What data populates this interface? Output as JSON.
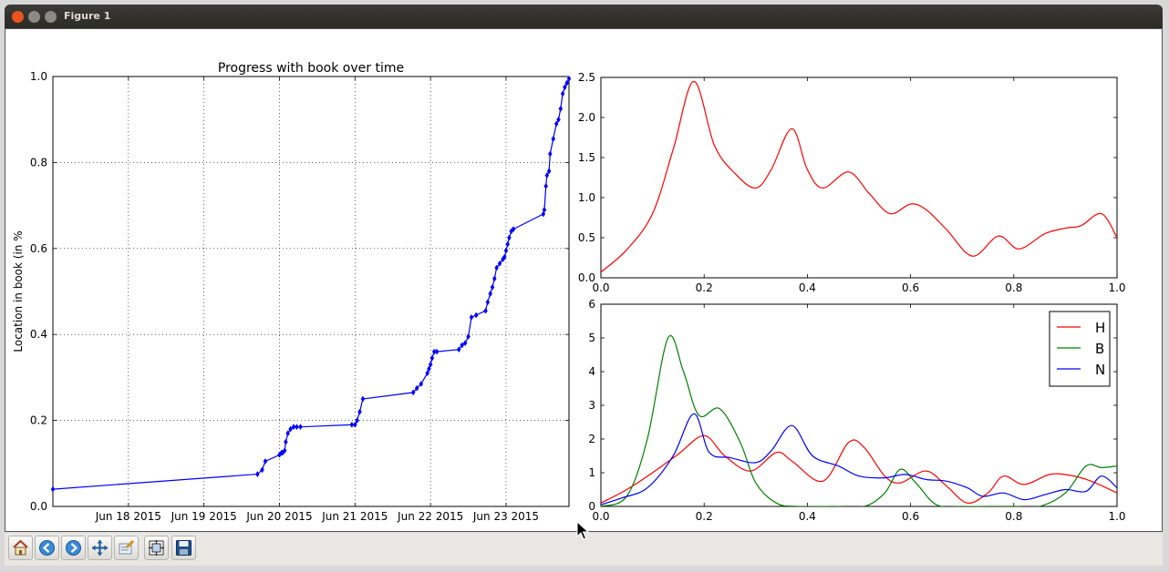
{
  "window": {
    "title": "Figure 1"
  },
  "toolbar": {
    "buttons": [
      {
        "name": "home-icon"
      },
      {
        "name": "back-icon"
      },
      {
        "name": "forward-icon"
      },
      {
        "name": "pan-icon"
      },
      {
        "name": "zoom-icon"
      },
      {
        "name": "subplots-icon"
      },
      {
        "name": "save-icon"
      }
    ]
  },
  "chart_data": [
    {
      "type": "line",
      "title": "Progress with book over time",
      "xlabel": "",
      "ylabel": "Location in book (in %",
      "xlim": [
        "2015-06-17",
        "2015-06-23 20:00"
      ],
      "ylim": [
        0.0,
        1.0
      ],
      "x_tick_labels": [
        "Jun 18 2015",
        "Jun 19 2015",
        "Jun 20 2015",
        "Jun 21 2015",
        "Jun 22 2015",
        "Jun 23 2015"
      ],
      "x_tick_dates": [
        "2015-06-18",
        "2015-06-19",
        "2015-06-20",
        "2015-06-21",
        "2015-06-22",
        "2015-06-23"
      ],
      "y_tick_labels": [
        "0.0",
        "0.2",
        "0.4",
        "0.6",
        "0.8",
        "1.0"
      ],
      "grid": true,
      "color": "#0000ff",
      "marker": "diamond",
      "x": [
        "2015-06-17 00:00",
        "2015-06-19 17:00",
        "2015-06-19 18:30",
        "2015-06-19 19:30",
        "2015-06-20 00:00",
        "2015-06-20 00:40",
        "2015-06-20 01:00",
        "2015-06-20 01:40",
        "2015-06-20 02:00",
        "2015-06-20 02:40",
        "2015-06-20 03:30",
        "2015-06-20 04:30",
        "2015-06-20 05:30",
        "2015-06-20 06:40",
        "2015-06-20 23:00",
        "2015-06-21 00:00",
        "2015-06-21 00:40",
        "2015-06-21 01:30",
        "2015-06-21 02:30",
        "2015-06-21 18:30",
        "2015-06-21 19:40",
        "2015-06-21 21:00",
        "2015-06-21 23:00",
        "2015-06-21 23:30",
        "2015-06-22 00:00",
        "2015-06-22 00:30",
        "2015-06-22 01:10",
        "2015-06-22 02:00",
        "2015-06-22 09:00",
        "2015-06-22 10:00",
        "2015-06-22 11:00",
        "2015-06-22 12:00",
        "2015-06-22 13:00",
        "2015-06-22 14:30",
        "2015-06-22 17:30",
        "2015-06-22 18:10",
        "2015-06-22 19:00",
        "2015-06-22 19:40",
        "2015-06-22 20:20",
        "2015-06-22 21:00",
        "2015-06-22 22:00",
        "2015-06-22 23:00",
        "2015-06-22 23:30",
        "2015-06-23 00:00",
        "2015-06-23 00:30",
        "2015-06-23 01:00",
        "2015-06-23 01:40",
        "2015-06-23 02:20",
        "2015-06-23 11:50",
        "2015-06-23 12:10",
        "2015-06-23 12:40",
        "2015-06-23 13:00",
        "2015-06-23 13:40",
        "2015-06-23 14:00",
        "2015-06-23 15:00",
        "2015-06-23 16:00",
        "2015-06-23 16:40",
        "2015-06-23 17:20",
        "2015-06-23 18:00",
        "2015-06-23 18:40",
        "2015-06-23 19:20",
        "2015-06-23 20:00"
      ],
      "values": [
        0.04,
        0.075,
        0.085,
        0.105,
        0.12,
        0.125,
        0.125,
        0.13,
        0.15,
        0.17,
        0.18,
        0.185,
        0.185,
        0.185,
        0.19,
        0.19,
        0.2,
        0.22,
        0.25,
        0.265,
        0.275,
        0.285,
        0.31,
        0.32,
        0.33,
        0.345,
        0.36,
        0.36,
        0.365,
        0.375,
        0.38,
        0.395,
        0.44,
        0.445,
        0.455,
        0.475,
        0.495,
        0.51,
        0.53,
        0.555,
        0.565,
        0.575,
        0.58,
        0.595,
        0.61,
        0.625,
        0.64,
        0.645,
        0.68,
        0.69,
        0.745,
        0.77,
        0.78,
        0.82,
        0.855,
        0.89,
        0.9,
        0.925,
        0.96,
        0.975,
        0.985,
        0.995
      ]
    },
    {
      "type": "line",
      "title": "",
      "xlim": [
        0.0,
        1.0
      ],
      "ylim": [
        0.0,
        2.5
      ],
      "x_tick_labels": [
        "0.0",
        "0.2",
        "0.4",
        "0.6",
        "0.8",
        "1.0"
      ],
      "y_tick_labels": [
        "0.0",
        "0.5",
        "1.0",
        "1.5",
        "2.0",
        "2.5"
      ],
      "grid": false,
      "series": [
        {
          "color": "#ff0000",
          "x": [
            0.0,
            0.05,
            0.1,
            0.14,
            0.18,
            0.22,
            0.26,
            0.3,
            0.33,
            0.37,
            0.4,
            0.43,
            0.48,
            0.52,
            0.56,
            0.6,
            0.63,
            0.67,
            0.72,
            0.77,
            0.81,
            0.86,
            0.9,
            0.93,
            0.97,
            1.0
          ],
          "values": [
            0.07,
            0.35,
            0.8,
            1.6,
            2.45,
            1.65,
            1.3,
            1.12,
            1.35,
            1.86,
            1.35,
            1.12,
            1.32,
            1.05,
            0.8,
            0.92,
            0.85,
            0.6,
            0.27,
            0.52,
            0.36,
            0.55,
            0.62,
            0.65,
            0.8,
            0.5
          ]
        }
      ]
    },
    {
      "type": "line",
      "title": "",
      "xlim": [
        0.0,
        1.0
      ],
      "ylim": [
        0,
        6
      ],
      "x_tick_labels": [
        "0.0",
        "0.2",
        "0.4",
        "0.6",
        "0.8",
        "1.0"
      ],
      "y_tick_labels": [
        "0",
        "1",
        "2",
        "3",
        "4",
        "5",
        "6"
      ],
      "grid": false,
      "legend": "top-right",
      "series": [
        {
          "name": "H",
          "color": "#ff0000",
          "x": [
            0.0,
            0.05,
            0.1,
            0.15,
            0.2,
            0.24,
            0.29,
            0.34,
            0.37,
            0.43,
            0.48,
            0.51,
            0.55,
            0.58,
            0.63,
            0.67,
            0.71,
            0.75,
            0.78,
            0.82,
            0.87,
            0.91,
            0.95,
            1.0
          ],
          "values": [
            0.1,
            0.5,
            1.0,
            1.55,
            2.1,
            1.5,
            1.05,
            1.6,
            1.35,
            0.75,
            1.9,
            1.75,
            0.9,
            0.7,
            1.05,
            0.6,
            0.1,
            0.4,
            0.9,
            0.65,
            0.95,
            0.92,
            0.75,
            0.4
          ]
        },
        {
          "name": "B",
          "color": "#008000",
          "x": [
            0.0,
            0.05,
            0.09,
            0.13,
            0.16,
            0.19,
            0.23,
            0.27,
            0.3,
            0.34,
            0.38,
            0.45,
            0.51,
            0.55,
            0.58,
            0.61,
            0.65,
            0.7,
            0.75,
            0.8,
            0.85,
            0.9,
            0.94,
            0.97,
            1.0
          ],
          "values": [
            0.0,
            0.3,
            2.0,
            5.0,
            4.0,
            2.7,
            2.9,
            1.9,
            0.7,
            0.1,
            0.0,
            0.0,
            0.0,
            0.4,
            1.1,
            0.7,
            0.05,
            0.0,
            0.0,
            0.0,
            0.0,
            0.4,
            1.2,
            1.15,
            1.2
          ]
        },
        {
          "name": "N",
          "color": "#0000ff",
          "x": [
            0.0,
            0.04,
            0.09,
            0.14,
            0.18,
            0.21,
            0.25,
            0.3,
            0.33,
            0.37,
            0.41,
            0.46,
            0.5,
            0.55,
            0.59,
            0.63,
            0.67,
            0.71,
            0.74,
            0.78,
            0.82,
            0.86,
            0.9,
            0.94,
            0.97,
            1.0
          ],
          "values": [
            0.05,
            0.25,
            0.55,
            1.5,
            2.75,
            1.6,
            1.45,
            1.3,
            1.65,
            2.4,
            1.5,
            1.2,
            0.9,
            0.85,
            0.95,
            0.8,
            0.75,
            0.55,
            0.3,
            0.4,
            0.2,
            0.35,
            0.5,
            0.45,
            0.9,
            0.55
          ]
        }
      ]
    }
  ]
}
